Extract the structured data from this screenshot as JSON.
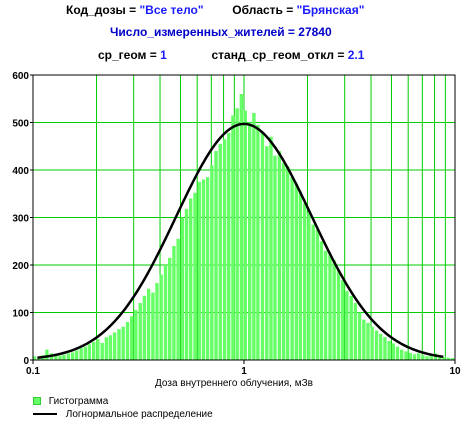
{
  "header": {
    "dose_code_key": "Код_дозы =",
    "dose_code_value": "\"Все тело\"",
    "region_key": "Область =",
    "region_value": "\"Брянская\"",
    "count_key": "Число_измеренных_жителей =",
    "count_value": "27840",
    "geo_mean_key": "ср_геом =",
    "geo_mean_value": "1",
    "geo_sd_key": "станд_ср_геом_откл =",
    "geo_sd_value": "2.1"
  },
  "legend": {
    "histogram_label": "Гистограмма",
    "lognormal_label": "Логнормальное распределение"
  },
  "colors": {
    "bars": "#66ff66",
    "bar_edge": "#33cc33",
    "grid": "#00cc00",
    "curve": "#000000",
    "frame": "#000000"
  },
  "chart_data": {
    "type": "bar",
    "xscale": "log",
    "xlim": [
      0.1,
      10
    ],
    "ylim": [
      0,
      600
    ],
    "grid": true,
    "xlabel": "Доза внутреннего облучения, мЗв",
    "ylabel": "",
    "x_ticks": [
      "0.1",
      "1",
      "10"
    ],
    "y_ticks": [
      "0",
      "100",
      "200",
      "300",
      "400",
      "500",
      "600"
    ],
    "legend_position": "bottom-left",
    "series": [
      {
        "name": "Гистограмма",
        "kind": "histogram",
        "x": [
          0.102,
          0.107,
          0.112,
          0.117,
          0.123,
          0.129,
          0.135,
          0.141,
          0.148,
          0.155,
          0.162,
          0.17,
          0.178,
          0.186,
          0.195,
          0.204,
          0.214,
          0.224,
          0.234,
          0.245,
          0.257,
          0.269,
          0.282,
          0.295,
          0.309,
          0.324,
          0.339,
          0.355,
          0.372,
          0.389,
          0.407,
          0.427,
          0.447,
          0.468,
          0.49,
          0.513,
          0.537,
          0.562,
          0.589,
          0.617,
          0.646,
          0.676,
          0.708,
          0.741,
          0.776,
          0.813,
          0.851,
          0.891,
          0.933,
          0.977,
          1.02,
          1.07,
          1.12,
          1.17,
          1.23,
          1.29,
          1.35,
          1.41,
          1.48,
          1.55,
          1.62,
          1.7,
          1.78,
          1.86,
          1.95,
          2.04,
          2.14,
          2.24,
          2.34,
          2.45,
          2.57,
          2.69,
          2.82,
          2.95,
          3.09,
          3.24,
          3.39,
          3.55,
          3.72,
          3.89,
          4.07,
          4.27,
          4.47,
          4.68,
          4.9,
          5.13,
          5.37,
          5.62,
          5.89,
          6.17,
          6.46,
          6.76,
          7.08,
          7.41,
          7.76,
          8.13,
          8.51,
          8.91,
          9.33,
          9.77
        ],
        "values": [
          8,
          6,
          10,
          22,
          14,
          12,
          9,
          11,
          14,
          16,
          20,
          25,
          28,
          33,
          38,
          44,
          36,
          48,
          52,
          58,
          65,
          70,
          80,
          92,
          105,
          120,
          135,
          150,
          142,
          162,
          180,
          200,
          215,
          240,
          255,
          300,
          318,
          340,
          352,
          375,
          380,
          385,
          410,
          440,
          455,
          465,
          478,
          515,
          530,
          560,
          525,
          500,
          520,
          495,
          480,
          450,
          470,
          430,
          440,
          415,
          408,
          385,
          372,
          355,
          330,
          310,
          285,
          275,
          250,
          230,
          222,
          210,
          190,
          168,
          145,
          135,
          120,
          100,
          85,
          78,
          70,
          62,
          55,
          48,
          40,
          35,
          28,
          22,
          18,
          15,
          12,
          14,
          10,
          8,
          12,
          14,
          8,
          6,
          5,
          4
        ]
      },
      {
        "name": "Логнормальное распределение",
        "kind": "line",
        "geometric_mean": 1,
        "geometric_sd": 2.1,
        "peak": 497
      }
    ]
  }
}
